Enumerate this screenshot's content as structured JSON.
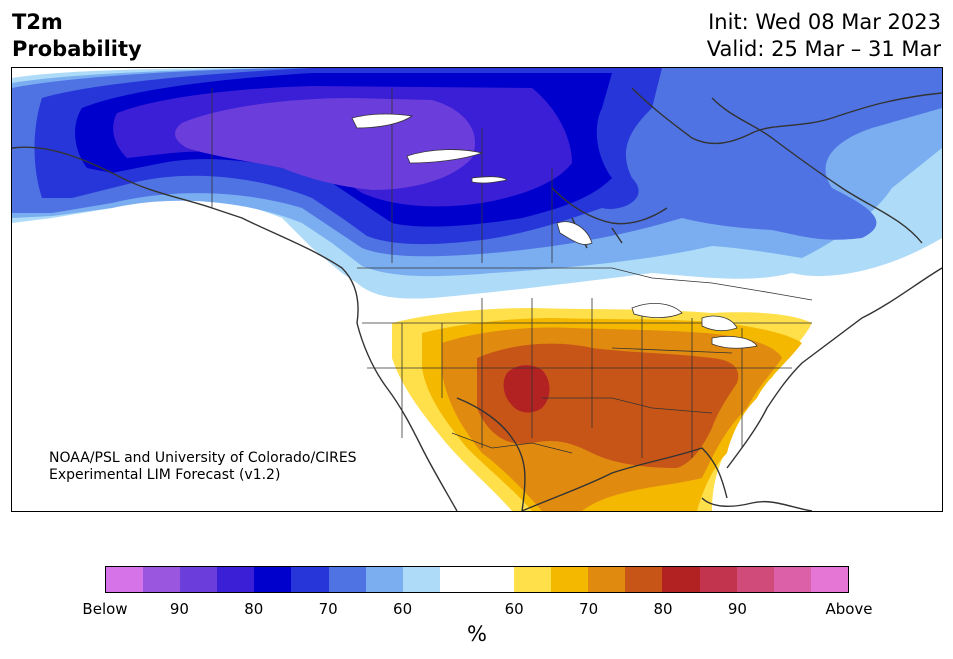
{
  "header": {
    "title_line1": "T2m",
    "title_line2": "Probability",
    "init": "Init: Wed 08 Mar 2023",
    "valid": "Valid: 25 Mar – 31 Mar"
  },
  "credit": {
    "line1": "NOAA/PSL and University of Colorado/CIRES",
    "line2": "Experimental LIM Forecast (v1.2)"
  },
  "colorbar": {
    "colors": [
      "#d673e8",
      "#9b56e0",
      "#6b3ddb",
      "#3a1fd6",
      "#0000cd",
      "#2636d9",
      "#4f73e3",
      "#7aaef0",
      "#aedbf8",
      "#ffffff",
      "#ffffff",
      "#ffe04a",
      "#f5b800",
      "#e08a10",
      "#c85518",
      "#b22222",
      "#c2344d",
      "#d14b7a",
      "#db60a8",
      "#e676d6"
    ],
    "tick_labels": [
      "Below",
      "90",
      "80",
      "70",
      "60",
      "60",
      "70",
      "80",
      "90",
      "Above"
    ],
    "unit": "%"
  },
  "map": {
    "region": "North America",
    "cold_colors": {
      "strong": "#6b3ddb",
      "deep": "#0000cd",
      "mid": "#2636d9",
      "light": "#4f73e3",
      "pale": "#7aaef0",
      "faint": "#aedbf8"
    },
    "warm_colors": {
      "faint": "#ffe04a",
      "light": "#f5b800",
      "mid": "#e08a10",
      "deep": "#c85518",
      "strong": "#b22222"
    }
  }
}
